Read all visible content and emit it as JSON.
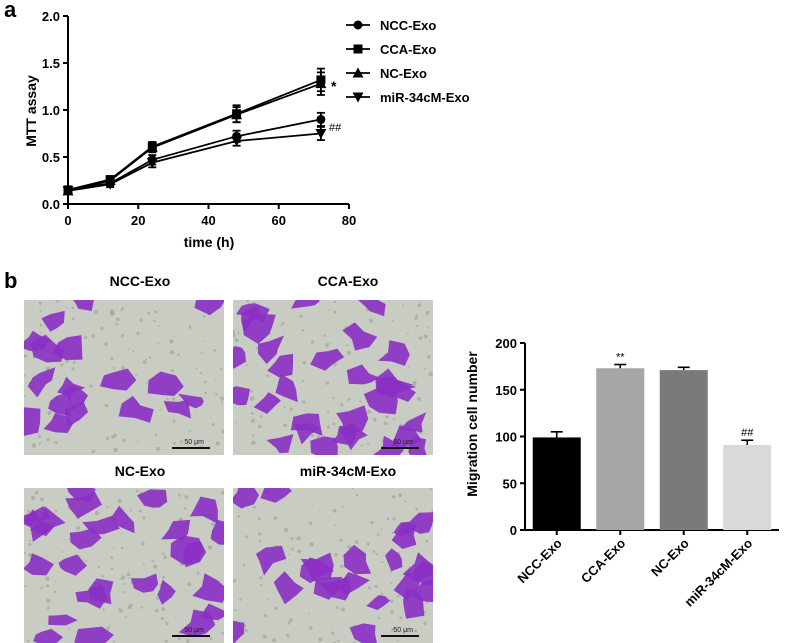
{
  "panels": {
    "a": "a",
    "b": "b"
  },
  "line_chart": {
    "xlabel": "time (h)",
    "ylabel": "MTT assay",
    "xticks": [
      "0",
      "20",
      "40",
      "60",
      "80"
    ],
    "yticks": [
      "0.0",
      "0.5",
      "1.0",
      "1.5",
      "2.0"
    ],
    "annotations": {
      "star": "*",
      "hash": "##"
    }
  },
  "images": {
    "titles": [
      "NCC-Exo",
      "CCA-Exo",
      "NC-Exo",
      "miR-34cM-Exo"
    ],
    "scale_label": "50 μm",
    "stain_color": "#8a2fc4"
  },
  "bar_chart": {
    "ylabel": "Migration cell number",
    "yticks": [
      "0",
      "50",
      "100",
      "150",
      "200"
    ],
    "annotations": [
      "",
      "**",
      "",
      "##"
    ]
  },
  "chart_data": [
    {
      "type": "line",
      "xlabel": "time (h)",
      "ylabel": "MTT assay",
      "xlim": [
        0,
        80
      ],
      "ylim": [
        0,
        2.0
      ],
      "x": [
        0,
        12,
        24,
        48,
        72
      ],
      "legend_position": "right",
      "series": [
        {
          "name": "NCC-Exo",
          "marker": "circle",
          "values": [
            0.15,
            0.22,
            0.47,
            0.72,
            0.9
          ],
          "errors": [
            0.02,
            0.03,
            0.05,
            0.06,
            0.07
          ]
        },
        {
          "name": "CCA-Exo",
          "marker": "square",
          "values": [
            0.15,
            0.26,
            0.61,
            0.96,
            1.32
          ],
          "errors": [
            0.02,
            0.03,
            0.05,
            0.09,
            0.12
          ]
        },
        {
          "name": "NC-Exo",
          "marker": "triangle-up",
          "values": [
            0.14,
            0.25,
            0.6,
            0.95,
            1.28
          ],
          "errors": [
            0.02,
            0.03,
            0.05,
            0.08,
            0.12
          ]
        },
        {
          "name": "miR-34cM-Exo",
          "marker": "triangle-down",
          "values": [
            0.14,
            0.21,
            0.44,
            0.67,
            0.75
          ],
          "errors": [
            0.02,
            0.03,
            0.05,
            0.05,
            0.07
          ]
        }
      ],
      "annotations": [
        {
          "text": "*",
          "x": 72,
          "y": 1.28
        },
        {
          "text": "##",
          "x": 72,
          "y": 0.82
        }
      ]
    },
    {
      "type": "bar",
      "ylabel": "Migration cell number",
      "ylim": [
        0,
        200
      ],
      "categories": [
        "NCC-Exo",
        "CCA-Exo",
        "NC-Exo",
        "miR-34cM-Exo"
      ],
      "values": [
        99,
        173,
        171,
        91
      ],
      "errors": [
        6,
        4,
        3,
        5
      ],
      "colors": [
        "#000000",
        "#a6a6a6",
        "#7a7a7a",
        "#d9d9d9"
      ],
      "annotations": [
        "",
        "**",
        "",
        "##"
      ]
    }
  ]
}
